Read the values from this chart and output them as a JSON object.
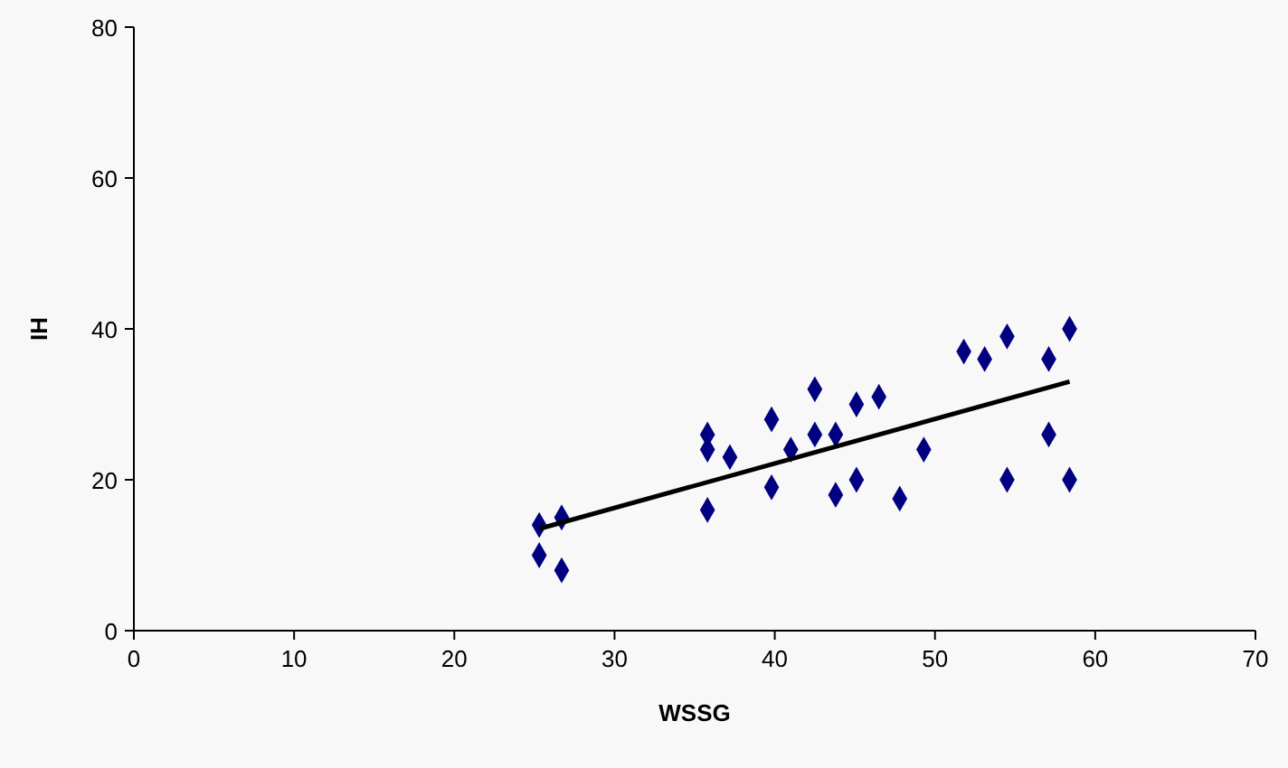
{
  "chart_data": {
    "type": "scatter",
    "xlabel": "WSSG",
    "ylabel": "IH",
    "xlim": [
      0,
      70
    ],
    "ylim": [
      0,
      80
    ],
    "xticks": [
      0,
      10,
      20,
      30,
      40,
      50,
      60,
      70
    ],
    "yticks": [
      0,
      20,
      40,
      60,
      80
    ],
    "grid": false,
    "marker": "diamond",
    "series": [
      {
        "color": "#000080",
        "x": [
          25.3,
          25.3,
          26.7,
          26.7,
          35.8,
          35.8,
          35.8,
          37.2,
          39.8,
          39.8,
          41,
          42.5,
          42.5,
          43.8,
          43.8,
          45.1,
          45.1,
          46.5,
          47.8,
          49.3,
          51.8,
          53.1,
          54.5,
          54.5,
          57.1,
          57.1,
          58.4,
          58.4
        ],
        "values": [
          14,
          10,
          15,
          8,
          26,
          24,
          16,
          23,
          28,
          19,
          24,
          32,
          26,
          26,
          18,
          30,
          20,
          31,
          17.5,
          24,
          37,
          36,
          39,
          20,
          36,
          26,
          40,
          20
        ]
      },
      {
        "type": "line",
        "color": "#000000",
        "marker": "none",
        "x": [
          25.3,
          58.4
        ],
        "values": [
          13.5,
          33
        ]
      }
    ]
  }
}
